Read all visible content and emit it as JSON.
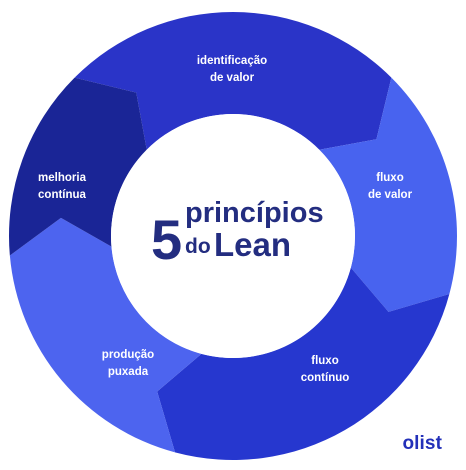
{
  "diagram": {
    "title_number": "5",
    "title_line1": "princípios",
    "title_do": "do",
    "title_lean": "Lean",
    "segments": [
      {
        "lines": [
          "identificação",
          "de valor"
        ],
        "color": "#2a34c8"
      },
      {
        "lines": [
          "fluxo",
          "de valor"
        ],
        "color": "#4863ef"
      },
      {
        "lines": [
          "fluxo",
          "contínuo"
        ],
        "color": "#2637cf"
      },
      {
        "lines": [
          "produção",
          "puxada"
        ],
        "color": "#4d64ef"
      },
      {
        "lines": [
          "melhoria",
          "contínua"
        ],
        "color": "#1a2596"
      }
    ]
  },
  "brand": "olist"
}
